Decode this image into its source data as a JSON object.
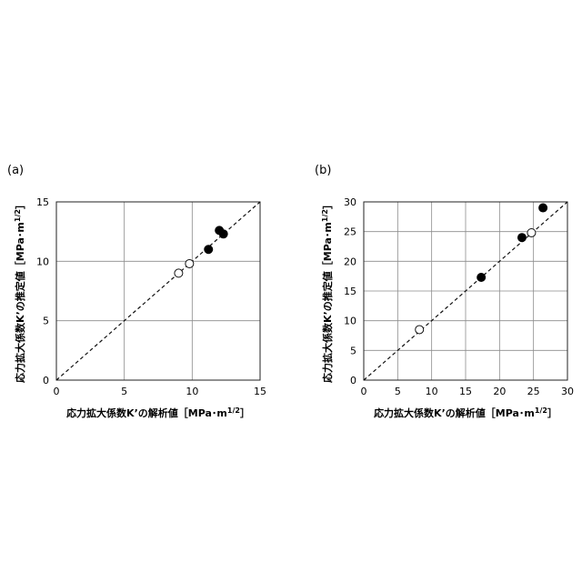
{
  "chart_data": [
    {
      "type": "scatter",
      "panel_label": "(a)",
      "xlabel": "応力拡大係数K’の解析値［MPa･m",
      "ylabel": "応力拡大係数K’の推定値［MPa･m",
      "unit_exponent": "1/2",
      "unit_close": "］",
      "xlim": [
        0,
        15
      ],
      "ylim": [
        0,
        15
      ],
      "xticks": [
        0,
        5,
        10,
        15
      ],
      "yticks": [
        0,
        5,
        10,
        15
      ],
      "grid": true,
      "reference_line": "y = x (dashed)",
      "series": [
        {
          "marker": "open-circle",
          "points": [
            [
              9.0,
              9.0
            ],
            [
              9.8,
              9.8
            ]
          ]
        },
        {
          "marker": "filled-circle",
          "points": [
            [
              11.2,
              11.0
            ],
            [
              12.0,
              12.6
            ],
            [
              12.3,
              12.3
            ]
          ]
        }
      ]
    },
    {
      "type": "scatter",
      "panel_label": "(b)",
      "xlabel": "応力拡大係数K’の解析値［MPa･m",
      "ylabel": "応力拡大係数K’の推定値［MPa･m",
      "unit_exponent": "1/2",
      "unit_close": "］",
      "xlim": [
        0,
        30
      ],
      "ylim": [
        0,
        30
      ],
      "xticks": [
        0,
        5,
        10,
        15,
        20,
        25,
        30
      ],
      "yticks": [
        0,
        5,
        10,
        15,
        20,
        25,
        30
      ],
      "grid": true,
      "reference_line": "y = x (dashed)",
      "series": [
        {
          "marker": "open-circle",
          "points": [
            [
              8.2,
              8.5
            ],
            [
              24.7,
              24.8
            ]
          ]
        },
        {
          "marker": "filled-circle",
          "points": [
            [
              17.3,
              17.3
            ],
            [
              23.3,
              24.0
            ],
            [
              26.4,
              29.0
            ]
          ]
        }
      ]
    }
  ]
}
